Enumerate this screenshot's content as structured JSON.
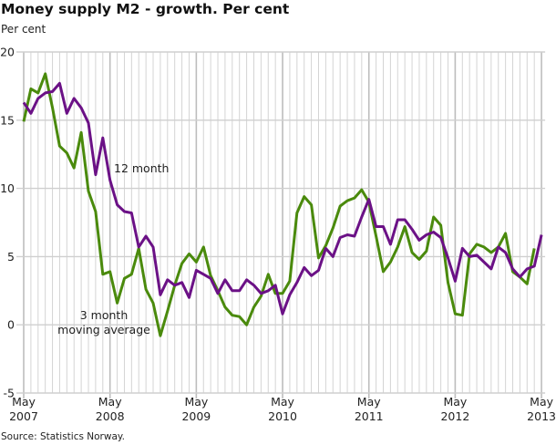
{
  "title": "Money supply M2 - growth. Per cent",
  "source": "Source: Statistics Norway.",
  "chart_data": {
    "type": "line",
    "title": "Money supply M2 - growth. Per cent",
    "ylabel": "Per cent",
    "ylim": [
      -5,
      20
    ],
    "yticks": [
      "20",
      "15",
      "10",
      "5",
      "0",
      "-5"
    ],
    "x_start": "May 2007",
    "x_frequency": "monthly",
    "xticks": [
      {
        "month": "May",
        "year": "2007"
      },
      {
        "month": "May",
        "year": "2008"
      },
      {
        "month": "May",
        "year": "2009"
      },
      {
        "month": "May",
        "year": "2010"
      },
      {
        "month": "May",
        "year": "2011"
      },
      {
        "month": "May",
        "year": "2012"
      },
      {
        "month": "May",
        "year": "2013"
      }
    ],
    "grid": true,
    "legend": "inline labels",
    "series": [
      {
        "name": "12 month",
        "label_lines": [
          "12 month"
        ],
        "color": "#6b1186",
        "values": [
          16.3,
          15.5,
          16.6,
          17.0,
          17.1,
          17.7,
          15.5,
          16.6,
          15.9,
          14.8,
          11.0,
          13.7,
          10.6,
          8.8,
          8.3,
          8.2,
          5.7,
          6.5,
          5.7,
          2.2,
          3.3,
          2.9,
          3.1,
          2.0,
          4.0,
          3.7,
          3.4,
          2.3,
          3.3,
          2.5,
          2.5,
          3.3,
          2.9,
          2.3,
          2.5,
          2.9,
          0.8,
          2.2,
          3.1,
          4.2,
          3.6,
          4.0,
          5.6,
          5.0,
          6.4,
          6.6,
          6.5,
          7.9,
          9.2,
          7.2,
          7.2,
          5.9,
          7.7,
          7.7,
          7.0,
          6.2,
          6.6,
          6.8,
          6.4,
          4.9,
          3.2,
          5.6,
          5.0,
          5.1,
          4.6,
          4.1,
          5.7,
          5.3,
          4.1,
          3.5,
          4.1,
          4.3,
          6.6
        ]
      },
      {
        "name": "3 month moving average",
        "label_lines": [
          "3 month",
          "moving average"
        ],
        "color": "#4a8a0c",
        "values": [
          14.9,
          17.3,
          17.0,
          18.4,
          15.9,
          13.1,
          12.6,
          11.5,
          14.1,
          9.8,
          8.3,
          3.7,
          3.9,
          1.6,
          3.4,
          3.7,
          5.6,
          2.6,
          1.6,
          -0.8,
          1.0,
          2.9,
          4.5,
          5.2,
          4.6,
          5.7,
          3.6,
          2.5,
          1.3,
          0.7,
          0.6,
          0.0,
          1.3,
          2.1,
          3.7,
          2.3,
          2.3,
          3.2,
          8.2,
          9.4,
          8.8,
          4.9,
          5.8,
          7.1,
          8.7,
          9.1,
          9.3,
          9.9,
          9.0,
          6.5,
          3.9,
          4.6,
          5.7,
          7.2,
          5.3,
          4.8,
          5.4,
          7.9,
          7.3,
          3.1,
          0.8,
          0.7,
          5.2,
          5.9,
          5.7,
          5.3,
          5.7,
          6.7,
          3.9,
          3.5,
          3.0,
          5.6,
          null
        ]
      }
    ]
  }
}
